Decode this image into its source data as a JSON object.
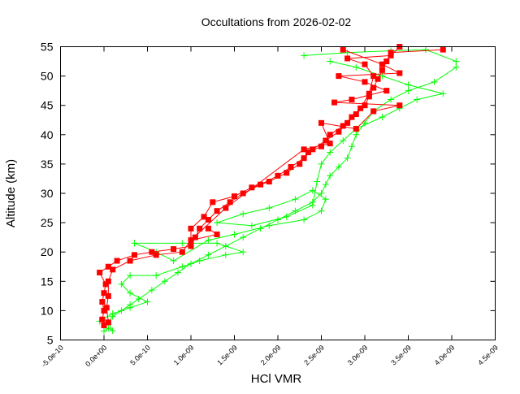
{
  "chart_data": {
    "type": "line",
    "title": "Occultations from 2026-02-02",
    "xlabel": "HCl VMR",
    "ylabel": "Altitude (km)",
    "xlim": [
      -5e-10,
      4.5e-09
    ],
    "ylim": [
      5,
      55
    ],
    "grid": false,
    "x_ticks": [
      -5e-10,
      0,
      5e-10,
      1e-09,
      1.5e-09,
      2e-09,
      2.5e-09,
      3e-09,
      3.5e-09,
      4e-09,
      4.5e-09
    ],
    "x_tick_labels": [
      "-5.0e-10",
      "0.0e+00",
      "5.0e-10",
      "1.0e-09",
      "1.5e-09",
      "2.0e-09",
      "2.5e-09",
      "3.0e-09",
      "3.5e-09",
      "4.0e-09",
      "4.5e-09"
    ],
    "y_ticks": [
      5,
      10,
      15,
      20,
      25,
      30,
      35,
      40,
      45,
      50,
      55
    ],
    "y_tick_labels": [
      "5",
      "10",
      "15",
      "20",
      "25",
      "30",
      "35",
      "40",
      "45",
      "50",
      "55"
    ],
    "series": [
      {
        "color": "#00ff00",
        "marker": "plus",
        "points": [
          [
            0.0,
            6.5
          ],
          [
            5e-11,
            7
          ],
          [
            1e-10,
            6.6
          ],
          [
            5e-11,
            8
          ],
          [
            1e-10,
            9
          ],
          [
            2e-10,
            10
          ],
          [
            3e-10,
            11
          ],
          [
            4e-10,
            12
          ],
          [
            5.5e-10,
            13.5
          ],
          [
            7e-10,
            15
          ],
          [
            8.5e-10,
            16.5
          ],
          [
            1e-09,
            18
          ],
          [
            1.2e-09,
            19.5
          ],
          [
            1.4e-09,
            21
          ],
          [
            1.6e-09,
            22.5
          ],
          [
            1.8e-09,
            24
          ],
          [
            2e-09,
            25.5
          ],
          [
            2.2e-09,
            27
          ],
          [
            2.4e-09,
            28.5
          ],
          [
            2.5e-09,
            30
          ],
          [
            2.55e-09,
            31.5
          ],
          [
            2.6e-09,
            33
          ],
          [
            2.7e-09,
            34.5
          ],
          [
            2.8e-09,
            36
          ],
          [
            2.85e-09,
            38
          ],
          [
            2.9e-09,
            40
          ],
          [
            3e-09,
            42
          ],
          [
            3.1e-09,
            44
          ],
          [
            3.3e-09,
            46
          ],
          [
            3.5e-09,
            47.5
          ],
          [
            3.8e-09,
            49
          ],
          [
            4.05e-09,
            51.5
          ],
          [
            4.05e-09,
            52.5
          ],
          [
            3.7e-09,
            54.5
          ],
          [
            3.3e-09,
            54.3
          ],
          [
            2.8e-09,
            54
          ],
          [
            2.3e-09,
            53.5
          ]
        ]
      },
      {
        "color": "#00ff00",
        "marker": "plus",
        "points": [
          [
            -5e-11,
            8.2
          ],
          [
            1e-10,
            9.5
          ],
          [
            3e-10,
            10.5
          ],
          [
            5e-10,
            11.5
          ],
          [
            3e-10,
            13
          ],
          [
            2e-10,
            14.5
          ],
          [
            3e-10,
            16
          ],
          [
            6e-10,
            16
          ],
          [
            9e-10,
            17.5
          ],
          [
            1.1e-09,
            18.5
          ],
          [
            1.4e-09,
            19.5
          ],
          [
            1.6e-09,
            20
          ],
          [
            1.3e-09,
            21.5
          ],
          [
            9e-10,
            21.5
          ],
          [
            3.5e-10,
            21.5
          ],
          [
            6e-10,
            20
          ],
          [
            8e-10,
            18.5
          ],
          [
            1.2e-09,
            22
          ],
          [
            1.5e-09,
            23
          ],
          [
            1.9e-09,
            24.5
          ],
          [
            2.3e-09,
            25.5
          ],
          [
            2.5e-09,
            27
          ],
          [
            2.55e-09,
            29
          ],
          [
            2.4e-09,
            30.5
          ],
          [
            2.2e-09,
            29
          ],
          [
            1.9e-09,
            27.5
          ],
          [
            1.6e-09,
            26.5
          ],
          [
            1.3e-09,
            25
          ],
          [
            1.7e-09,
            24.5
          ],
          [
            2.1e-09,
            26
          ],
          [
            2.4e-09,
            28
          ],
          [
            2.45e-09,
            32
          ],
          [
            2.5e-09,
            35
          ],
          [
            2.6e-09,
            37
          ],
          [
            2.75e-09,
            39
          ],
          [
            2.9e-09,
            41
          ],
          [
            3.2e-09,
            43
          ],
          [
            3.4e-09,
            44.5
          ],
          [
            3.6e-09,
            46
          ],
          [
            3.9e-09,
            47
          ],
          [
            3.5e-09,
            48.5
          ],
          [
            3.2e-09,
            50
          ],
          [
            2.9e-09,
            51.5
          ],
          [
            2.6e-09,
            52.5
          ]
        ]
      },
      {
        "color": "#ff0000",
        "marker": "square",
        "points": [
          [
            0.0,
            7.5
          ],
          [
            -2e-11,
            8.5
          ],
          [
            0.0,
            10
          ],
          [
            -2e-11,
            11.5
          ],
          [
            0.0,
            13
          ],
          [
            2e-11,
            14.5
          ],
          [
            -5e-11,
            16.5
          ],
          [
            5e-11,
            17.5
          ],
          [
            1.5e-10,
            18.5
          ],
          [
            3.5e-10,
            19.5
          ],
          [
            5.5e-10,
            20
          ],
          [
            8e-10,
            20.5
          ],
          [
            1e-09,
            21
          ],
          [
            1.05e-09,
            22.5
          ],
          [
            1.1e-09,
            24
          ],
          [
            1.2e-09,
            25.5
          ],
          [
            1.3e-09,
            27
          ],
          [
            1.45e-09,
            28.5
          ],
          [
            1.6e-09,
            30
          ],
          [
            1.8e-09,
            31.5
          ],
          [
            2e-09,
            33
          ],
          [
            2.15e-09,
            34.5
          ],
          [
            2.3e-09,
            36
          ],
          [
            2.4e-09,
            37.5
          ],
          [
            2.55e-09,
            39
          ],
          [
            2.7e-09,
            40.5
          ],
          [
            2.8e-09,
            42
          ],
          [
            2.9e-09,
            43.5
          ],
          [
            3e-09,
            45
          ],
          [
            3.05e-09,
            46.5
          ],
          [
            3.1e-09,
            48
          ],
          [
            3.15e-09,
            49.5
          ],
          [
            3.2e-09,
            51
          ],
          [
            3.25e-09,
            52.5
          ],
          [
            3.3e-09,
            54
          ],
          [
            3.9e-09,
            54.5
          ]
        ]
      },
      {
        "color": "#ff0000",
        "marker": "square",
        "points": [
          [
            5e-11,
            8
          ],
          [
            3e-11,
            10.5
          ],
          [
            5e-11,
            12.5
          ],
          [
            5e-11,
            15
          ],
          [
            1e-10,
            17
          ],
          [
            3e-10,
            18.5
          ],
          [
            6e-10,
            19.5
          ],
          [
            9e-10,
            20
          ],
          [
            1e-09,
            22
          ],
          [
            1e-09,
            24
          ],
          [
            1.15e-09,
            26
          ],
          [
            1.25e-09,
            28.5
          ],
          [
            1.5e-09,
            29.5
          ],
          [
            1.7e-09,
            31
          ],
          [
            1.9e-09,
            32
          ],
          [
            2.1e-09,
            33.5
          ],
          [
            2.25e-09,
            35
          ],
          [
            2.35e-09,
            37
          ],
          [
            2.5e-09,
            38
          ],
          [
            2.6e-09,
            40
          ],
          [
            2.75e-09,
            41.5
          ],
          [
            2.85e-09,
            43
          ],
          [
            2.95e-09,
            44.5
          ],
          [
            3.05e-09,
            47
          ],
          [
            3.1e-09,
            50
          ],
          [
            3e-09,
            52
          ],
          [
            2.8e-09,
            53
          ],
          [
            3.3e-09,
            53.5
          ],
          [
            3.4e-09,
            55
          ]
        ]
      },
      {
        "color": "#ff0000",
        "marker": "square",
        "points": [
          [
            1.2e-09,
            24
          ],
          [
            1.3e-09,
            23
          ],
          [
            1e-09,
            22
          ],
          [
            1.4e-09,
            27.5
          ],
          [
            2.3e-09,
            37.5
          ],
          [
            2.6e-09,
            38.5
          ],
          [
            2.5e-09,
            42
          ],
          [
            2.9e-09,
            41
          ],
          [
            3.1e-09,
            44
          ],
          [
            3.4e-09,
            45
          ],
          [
            2.65e-09,
            45.5
          ],
          [
            2.85e-09,
            46
          ],
          [
            3.25e-09,
            47.5
          ],
          [
            3e-09,
            49
          ],
          [
            2.7e-09,
            50
          ],
          [
            3.4e-09,
            50.5
          ],
          [
            3.2e-09,
            52
          ],
          [
            2.75e-09,
            54.5
          ]
        ]
      }
    ]
  }
}
